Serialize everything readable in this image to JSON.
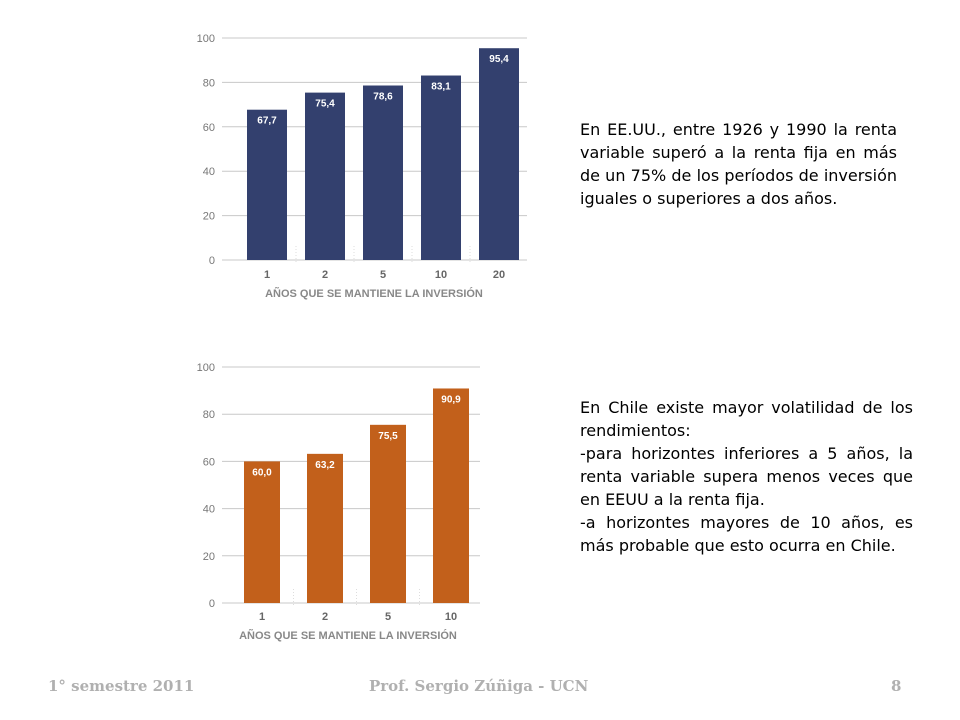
{
  "chart_data": [
    {
      "type": "bar",
      "categories": [
        "1",
        "2",
        "5",
        "10",
        "20"
      ],
      "values": [
        67.7,
        75.4,
        78.6,
        83.1,
        95.4
      ],
      "value_labels": [
        "67,7",
        "75,4",
        "78,6",
        "83,1",
        "95,4"
      ],
      "xlabel": "AÑOS QUE SE MANTIENE LA INVERSIÓN",
      "ylabel": "",
      "ylim": [
        0,
        100
      ],
      "yticks": [
        "0",
        "20",
        "40",
        "60",
        "80",
        "100"
      ],
      "color": "#33406e",
      "grid": true
    },
    {
      "type": "bar",
      "categories": [
        "1",
        "2",
        "5",
        "10"
      ],
      "values": [
        60.0,
        63.2,
        75.5,
        90.9
      ],
      "value_labels": [
        "60,0",
        "63,2",
        "75,5",
        "90,9"
      ],
      "xlabel": "AÑOS QUE SE MANTIENE LA INVERSIÓN",
      "ylabel": "",
      "ylim": [
        0,
        100
      ],
      "yticks": [
        "0",
        "20",
        "40",
        "60",
        "80",
        "100"
      ],
      "color": "#c2601b",
      "grid": true
    }
  ],
  "text_usa": "En EE.UU., entre 1926 y 1990 la renta variable superó a la renta fija en más de un 75% de los períodos de inversión iguales o superiores a dos años.",
  "text_chile": {
    "line1": "En Chile existe mayor volatilidad de los rendimientos:",
    "line2": "-para horizontes inferiores a 5 años, la renta variable supera menos veces que en EEUU a la renta fija.",
    "line3": "-a horizontes mayores de 10 años, es más probable que esto ocurra en Chile."
  },
  "footer": {
    "semester": "1° semestre 2011",
    "author": "Prof. Sergio Zúñiga - UCN",
    "page": "8"
  }
}
